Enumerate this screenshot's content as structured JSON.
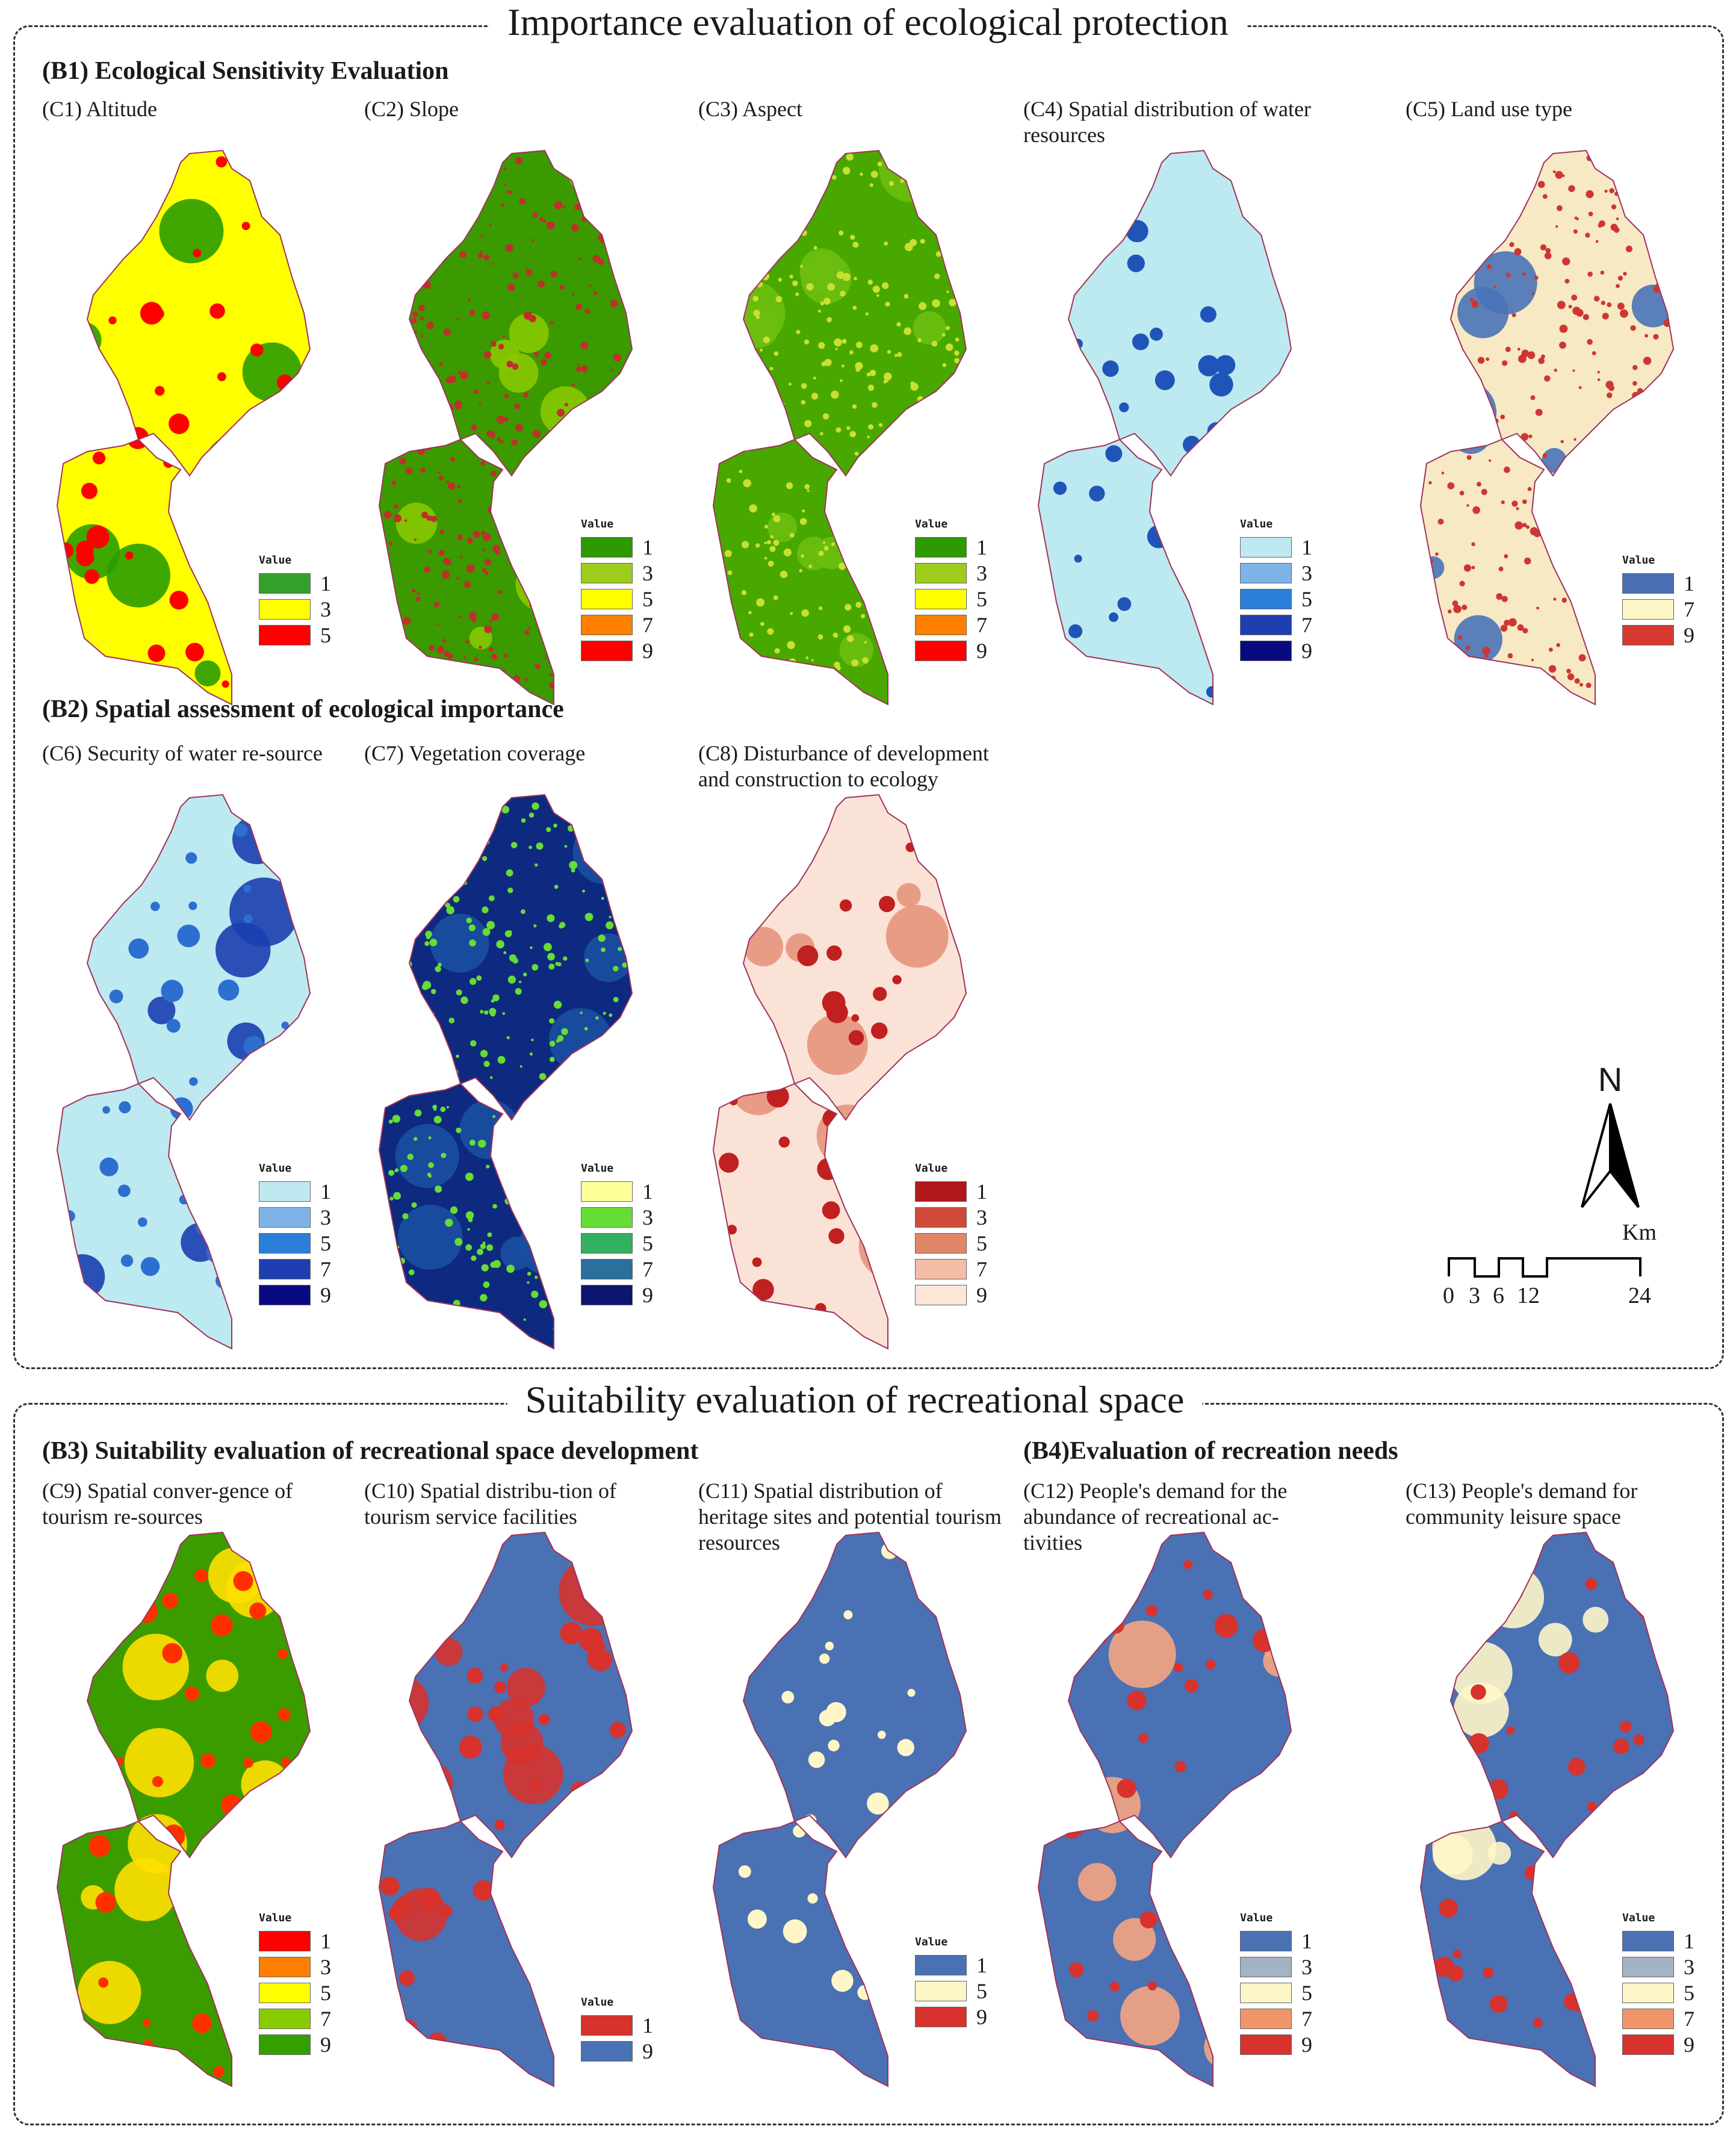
{
  "header_top": "Importance evaluation of ecological protection",
  "header_bottom": "Suitability evaluation of recreational space",
  "sections": {
    "b1": "(B1) Ecological Sensitivity Evaluation",
    "b2": "(B2) Spatial assessment of ecological importance",
    "b3": "(B3) Suitability evaluation of recreational space development",
    "b4": "(B4)Evaluation of recreation needs"
  },
  "legend_title": "Value",
  "north": {
    "label": "N"
  },
  "scale": {
    "unit": "Km",
    "ticks": [
      "0",
      "3",
      "6",
      "12",
      "24"
    ]
  },
  "panels": [
    {
      "id": "c1",
      "title": "(C1) Altitude",
      "base": "#ffff00",
      "speckle": "#ff0000",
      "zones": [
        "#2a9d00"
      ],
      "legend": [
        {
          "v": "1",
          "color": "#33a02c"
        },
        {
          "v": "3",
          "color": "#ffff00"
        },
        {
          "v": "5",
          "color": "#ff0000"
        }
      ]
    },
    {
      "id": "c2",
      "title": "(C2) Slope",
      "base": "#3a9a00",
      "speckle": "#c0302a",
      "zones": [
        "#88c800"
      ],
      "legend": [
        {
          "v": "1",
          "color": "#2e9a00"
        },
        {
          "v": "3",
          "color": "#9ccc1c"
        },
        {
          "v": "5",
          "color": "#ffff00"
        },
        {
          "v": "7",
          "color": "#ff7f00"
        },
        {
          "v": "9",
          "color": "#ff0000"
        }
      ]
    },
    {
      "id": "c3",
      "title": "(C3) Aspect",
      "base": "#48a800",
      "speckle": "#c8e030",
      "zones": [
        "#6cbe10"
      ],
      "legend": [
        {
          "v": "1",
          "color": "#2e9a00"
        },
        {
          "v": "3",
          "color": "#9ccc1c"
        },
        {
          "v": "5",
          "color": "#ffff00"
        },
        {
          "v": "7",
          "color": "#ff7f00"
        },
        {
          "v": "9",
          "color": "#ff0000"
        }
      ]
    },
    {
      "id": "c4",
      "title": "(C4) Spatial distribution of water resources",
      "base": "#bde9f0",
      "speckle": "#1f55b8",
      "zones": [],
      "legend": [
        {
          "v": "1",
          "color": "#bfe8f0"
        },
        {
          "v": "3",
          "color": "#7fb3e8"
        },
        {
          "v": "5",
          "color": "#2b7fd8"
        },
        {
          "v": "7",
          "color": "#1f3fb0"
        },
        {
          "v": "9",
          "color": "#0a0a80"
        }
      ]
    },
    {
      "id": "c5",
      "title": "(C5) Land use type",
      "base": "#f6e9c4",
      "speckle": "#cf3631",
      "zones": [
        "#4a73b8"
      ],
      "legend": [
        {
          "v": "1",
          "color": "#4a6fb5"
        },
        {
          "v": "7",
          "color": "#fff6c8"
        },
        {
          "v": "9",
          "color": "#d73a30"
        }
      ]
    },
    {
      "id": "c6",
      "title": "(C6) Security of water re-source",
      "base": "#bde9f0",
      "speckle": "#2d6fd0",
      "zones": [
        "#1a3fb0"
      ],
      "legend": [
        {
          "v": "1",
          "color": "#bfe8f0"
        },
        {
          "v": "3",
          "color": "#7fb3e8"
        },
        {
          "v": "5",
          "color": "#2b7fd8"
        },
        {
          "v": "7",
          "color": "#1f3fb0"
        },
        {
          "v": "9",
          "color": "#0a0a80"
        }
      ]
    },
    {
      "id": "c7",
      "title": "(C7) Vegetation coverage",
      "base": "#0d2a80",
      "speckle": "#66dd33",
      "zones": [
        "#1a4fa0"
      ],
      "legend": [
        {
          "v": "1",
          "color": "#ffff99"
        },
        {
          "v": "3",
          "color": "#66dd33"
        },
        {
          "v": "5",
          "color": "#33b060"
        },
        {
          "v": "7",
          "color": "#2a6f9e"
        },
        {
          "v": "9",
          "color": "#0a1670"
        }
      ]
    },
    {
      "id": "c8",
      "title": "(C8) Disturbance of development and construction to ecology",
      "base": "#fbe2d6",
      "speckle": "#c02020",
      "zones": [
        "#e7957c"
      ],
      "legend": [
        {
          "v": "1",
          "color": "#b2181b"
        },
        {
          "v": "3",
          "color": "#d04a3a"
        },
        {
          "v": "5",
          "color": "#e28668"
        },
        {
          "v": "7",
          "color": "#f3bea6"
        },
        {
          "v": "9",
          "color": "#fde5d8"
        }
      ]
    },
    {
      "id": "c9",
      "title": "(C9) Spatial conver-gence of tourism re-sources",
      "base": "#3b9c00",
      "speckle": "#ff3000",
      "zones": [
        "#ffe000"
      ],
      "legend": [
        {
          "v": "1",
          "color": "#ff0000"
        },
        {
          "v": "3",
          "color": "#ff7f00"
        },
        {
          "v": "5",
          "color": "#ffff00"
        },
        {
          "v": "7",
          "color": "#88cc00"
        },
        {
          "v": "9",
          "color": "#33a000"
        }
      ]
    },
    {
      "id": "c10",
      "title": "(C10) Spatial distribu-tion of tourism service facilities",
      "base": "#4a71b4",
      "speckle": "#d7322c",
      "zones": [
        "#d7322c"
      ],
      "legend": [
        {
          "v": "1",
          "color": "#d7322c"
        },
        {
          "v": "9",
          "color": "#4a71b4"
        }
      ]
    },
    {
      "id": "c11",
      "title": "(C11) Spatial distribution of heritage sites and potential tourism resources",
      "base": "#4a71b4",
      "speckle": "#fff6c8",
      "zones": [],
      "legend": [
        {
          "v": "1",
          "color": "#4a71b4"
        },
        {
          "v": "5",
          "color": "#fff6c8"
        },
        {
          "v": "9",
          "color": "#d7322c"
        }
      ]
    },
    {
      "id": "c12",
      "title": "(C12) People's demand for the abundance of recreational ac-tivities",
      "base": "#4a71b4",
      "speckle": "#d7322c",
      "zones": [
        "#f4a582"
      ],
      "legend": [
        {
          "v": "1",
          "color": "#4a71b4"
        },
        {
          "v": "3",
          "color": "#a3b3c4"
        },
        {
          "v": "5",
          "color": "#fff6c8"
        },
        {
          "v": "7",
          "color": "#f0956a"
        },
        {
          "v": "9",
          "color": "#d7322c"
        }
      ]
    },
    {
      "id": "c13",
      "title": "(C13) People's demand for community leisure space",
      "base": "#4a71b4",
      "speckle": "#d7322c",
      "zones": [
        "#fff6c8"
      ],
      "legend": [
        {
          "v": "1",
          "color": "#4a71b4"
        },
        {
          "v": "3",
          "color": "#a3b3c4"
        },
        {
          "v": "5",
          "color": "#fff6c8"
        },
        {
          "v": "7",
          "color": "#f0956a"
        },
        {
          "v": "9",
          "color": "#d7322c"
        }
      ]
    }
  ]
}
